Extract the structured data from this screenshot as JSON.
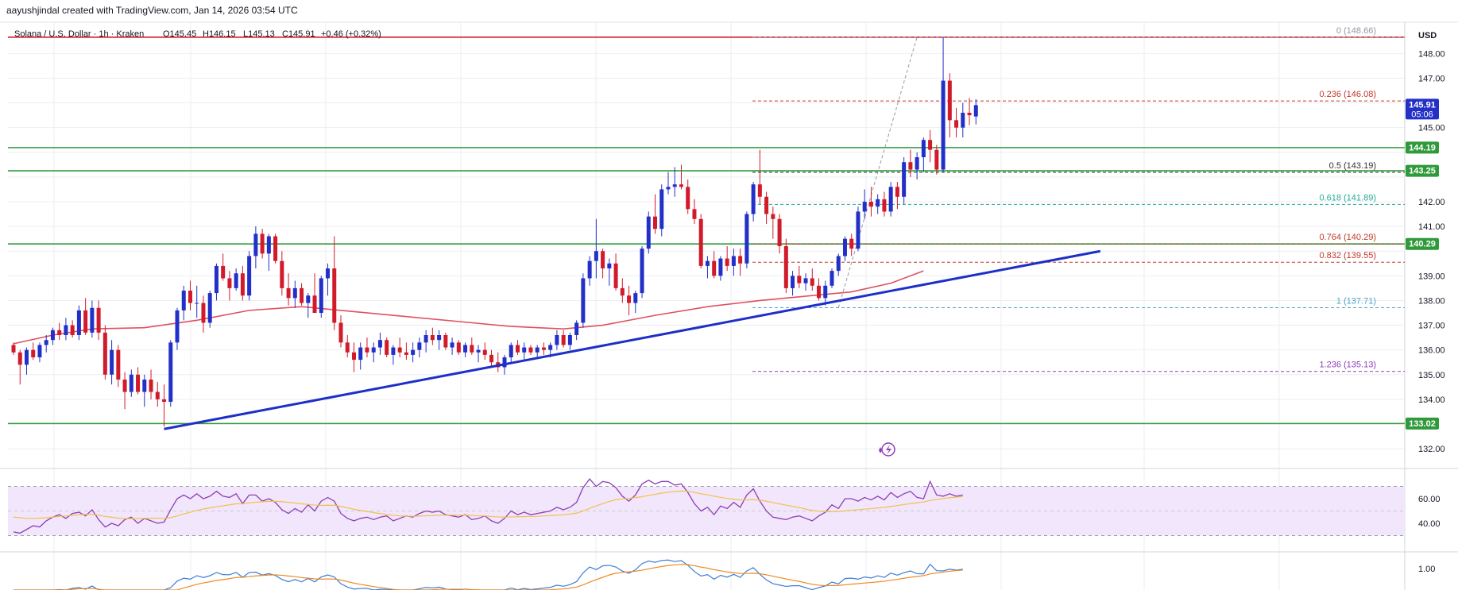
{
  "credit": "aayushjindal created with TradingView.com, Jan 14, 2026 03:54 UTC",
  "symbol_line": {
    "symbol": "Solana / U.S. Dollar · 1h · Kraken",
    "open": "O145.45",
    "high": "H146.15",
    "low": "L145.13",
    "close": "C145.91",
    "change": "+0.46 (+0.32%)"
  },
  "currency": "USD",
  "colors": {
    "up": "#2230c8",
    "down": "#d11a2a",
    "trendline": "#1e2fc7",
    "support": "#2e9a3a",
    "resistance": "#d11a2a",
    "ma": "#e0505f",
    "rsi": "#8e3fb6",
    "rsi_ma": "#f2c14e",
    "rsi_band": "#f1e6fb",
    "macd": "#3b7dd8",
    "signal": "#ef8a22"
  },
  "chart_data": {
    "type": "candlestick",
    "y_axis": {
      "ticks": [
        132.0,
        133.0,
        134.0,
        135.0,
        136.0,
        137.0,
        138.0,
        139.0,
        140.0,
        141.0,
        142.0,
        143.0,
        144.0,
        145.0,
        146.0,
        147.0,
        148.0
      ],
      "tick_labels": [
        "132.00",
        "",
        "134.00",
        "135.00",
        "136.00",
        "137.00",
        "138.00",
        "139.00",
        "",
        "141.00",
        "142.00",
        "",
        "",
        "145.00",
        "",
        "147.00",
        "148.00"
      ],
      "ylim": [
        131.2,
        149.2
      ]
    },
    "price_tags": [
      {
        "label": "145.91",
        "sub": "05:06",
        "value": 145.91,
        "color": "#2230c8"
      },
      {
        "label": "144.19",
        "value": 144.19,
        "color": "#2e9a3a"
      },
      {
        "label": "143.25",
        "value": 143.25,
        "color": "#2e9a3a"
      },
      {
        "label": "140.29",
        "value": 140.29,
        "color": "#2e9a3a"
      },
      {
        "label": "133.02",
        "value": 133.02,
        "color": "#2e9a3a"
      }
    ],
    "horizontal_lines": [
      {
        "value": 148.66,
        "color": "#d11a2a"
      },
      {
        "value": 144.19,
        "color": "#2e9a3a"
      },
      {
        "value": 143.25,
        "color": "#2e9a3a"
      },
      {
        "value": 140.29,
        "color": "#2e9a3a"
      },
      {
        "value": 133.02,
        "color": "#2e9a3a"
      }
    ],
    "fib_levels": [
      {
        "label": "0 (148.66)",
        "value": 148.66,
        "color": "#9598a1"
      },
      {
        "label": "0.236 (146.08)",
        "value": 146.08,
        "color": "#c0392b"
      },
      {
        "label": "0.5 (143.19)",
        "value": 143.19,
        "color": "#333333"
      },
      {
        "label": "0.618 (141.89)",
        "value": 141.89,
        "color": "#22ab94"
      },
      {
        "label": "0.764 (140.29)",
        "value": 140.29,
        "color": "#c0392b"
      },
      {
        "label": "0.832 (139.55)",
        "value": 139.55,
        "color": "#c0392b"
      },
      {
        "label": "1 (137.71)",
        "value": 137.71,
        "color": "#4aa3c8"
      },
      {
        "label": "1.236 (135.13)",
        "value": 135.13,
        "color": "#8e3fb6"
      }
    ],
    "candles": [
      [
        136.2,
        136.3,
        135.8,
        135.9
      ],
      [
        135.9,
        136.0,
        134.6,
        135.4
      ],
      [
        135.4,
        136.1,
        135.0,
        136.0
      ],
      [
        136.0,
        136.3,
        135.6,
        135.7
      ],
      [
        135.7,
        136.3,
        135.5,
        136.2
      ],
      [
        136.2,
        136.6,
        135.9,
        136.4
      ],
      [
        136.4,
        136.9,
        136.2,
        136.8
      ],
      [
        136.8,
        137.1,
        136.4,
        136.6
      ],
      [
        136.6,
        137.3,
        136.4,
        137.0
      ],
      [
        137.0,
        137.2,
        136.5,
        136.6
      ],
      [
        136.6,
        137.8,
        136.4,
        137.6
      ],
      [
        137.6,
        138.1,
        136.6,
        136.7
      ],
      [
        136.7,
        138.0,
        136.5,
        137.7
      ],
      [
        137.7,
        138.0,
        136.4,
        136.7
      ],
      [
        136.7,
        137.0,
        134.8,
        135.0
      ],
      [
        135.0,
        136.4,
        134.6,
        136.0
      ],
      [
        136.0,
        136.2,
        134.5,
        134.8
      ],
      [
        134.8,
        135.1,
        133.6,
        134.3
      ],
      [
        134.3,
        135.2,
        134.1,
        135.0
      ],
      [
        135.0,
        135.3,
        134.2,
        134.3
      ],
      [
        134.3,
        135.0,
        133.7,
        134.8
      ],
      [
        134.8,
        135.2,
        134.0,
        134.3
      ],
      [
        134.3,
        134.7,
        133.7,
        134.0
      ],
      [
        134.0,
        134.6,
        132.9,
        133.9
      ],
      [
        133.9,
        136.4,
        133.7,
        136.3
      ],
      [
        136.3,
        137.7,
        136.0,
        137.6
      ],
      [
        137.6,
        138.6,
        137.2,
        138.4
      ],
      [
        138.4,
        138.8,
        137.6,
        137.9
      ],
      [
        137.9,
        138.6,
        137.3,
        137.9
      ],
      [
        137.9,
        138.2,
        136.7,
        137.1
      ],
      [
        137.1,
        138.4,
        136.9,
        138.3
      ],
      [
        138.3,
        139.5,
        138.0,
        139.4
      ],
      [
        139.4,
        139.9,
        138.8,
        138.9
      ],
      [
        138.9,
        139.2,
        138.0,
        138.5
      ],
      [
        138.5,
        139.3,
        138.4,
        139.1
      ],
      [
        139.1,
        139.4,
        138.0,
        138.2
      ],
      [
        138.2,
        140.0,
        138.0,
        139.8
      ],
      [
        139.8,
        141.0,
        139.3,
        140.7
      ],
      [
        140.7,
        140.9,
        139.7,
        139.9
      ],
      [
        139.9,
        140.7,
        139.2,
        140.6
      ],
      [
        140.6,
        140.7,
        139.5,
        139.6
      ],
      [
        139.6,
        140.0,
        138.2,
        138.5
      ],
      [
        138.5,
        139.1,
        137.8,
        138.1
      ],
      [
        138.1,
        138.8,
        137.7,
        138.5
      ],
      [
        138.5,
        138.7,
        137.8,
        137.9
      ],
      [
        137.9,
        138.3,
        137.3,
        138.2
      ],
      [
        138.2,
        139.1,
        137.6,
        137.5
      ],
      [
        137.5,
        139.0,
        137.3,
        138.9
      ],
      [
        138.9,
        139.5,
        138.2,
        139.3
      ],
      [
        139.3,
        140.6,
        136.8,
        137.1
      ],
      [
        137.1,
        137.4,
        136.1,
        136.3
      ],
      [
        136.3,
        136.6,
        135.7,
        135.9
      ],
      [
        135.9,
        136.3,
        135.1,
        135.6
      ],
      [
        135.6,
        136.3,
        135.2,
        136.1
      ],
      [
        136.1,
        136.5,
        135.7,
        135.9
      ],
      [
        135.9,
        136.3,
        135.5,
        136.1
      ],
      [
        136.1,
        136.7,
        135.8,
        136.4
      ],
      [
        136.4,
        136.5,
        135.7,
        135.8
      ],
      [
        135.8,
        136.2,
        135.4,
        136.1
      ],
      [
        136.1,
        136.5,
        135.7,
        135.9
      ],
      [
        135.9,
        136.3,
        135.6,
        135.8
      ],
      [
        135.8,
        136.3,
        135.5,
        136.0
      ],
      [
        136.0,
        136.5,
        135.7,
        136.3
      ],
      [
        136.3,
        136.8,
        135.9,
        136.6
      ],
      [
        136.6,
        136.9,
        136.2,
        136.4
      ],
      [
        136.4,
        136.8,
        136.0,
        136.6
      ],
      [
        136.6,
        136.7,
        136.0,
        136.1
      ],
      [
        136.1,
        136.5,
        135.8,
        136.3
      ],
      [
        136.3,
        136.4,
        135.8,
        135.9
      ],
      [
        135.9,
        136.3,
        135.7,
        136.2
      ],
      [
        136.2,
        136.5,
        135.8,
        135.9
      ],
      [
        135.9,
        136.2,
        135.5,
        136.0
      ],
      [
        136.0,
        136.3,
        135.6,
        135.8
      ],
      [
        135.8,
        136.0,
        135.3,
        135.5
      ],
      [
        135.5,
        135.9,
        135.1,
        135.3
      ],
      [
        135.3,
        135.8,
        135.0,
        135.7
      ],
      [
        135.7,
        136.3,
        135.5,
        136.2
      ],
      [
        136.2,
        136.4,
        135.8,
        135.9
      ],
      [
        135.9,
        136.3,
        135.6,
        136.1
      ],
      [
        136.1,
        136.2,
        135.8,
        135.9
      ],
      [
        135.9,
        136.2,
        135.7,
        136.1
      ],
      [
        136.1,
        136.3,
        135.8,
        136.0
      ],
      [
        136.0,
        136.3,
        135.7,
        136.2
      ],
      [
        136.2,
        136.8,
        136.0,
        136.6
      ],
      [
        136.6,
        136.8,
        136.1,
        136.2
      ],
      [
        136.2,
        136.7,
        136.0,
        136.6
      ],
      [
        136.6,
        137.2,
        136.4,
        137.1
      ],
      [
        137.1,
        139.1,
        136.9,
        138.9
      ],
      [
        138.9,
        139.8,
        138.6,
        139.6
      ],
      [
        139.6,
        141.3,
        138.9,
        140.0
      ],
      [
        140.0,
        140.1,
        138.9,
        139.3
      ],
      [
        139.3,
        139.7,
        138.6,
        139.5
      ],
      [
        139.5,
        139.9,
        138.4,
        138.5
      ],
      [
        138.5,
        138.9,
        137.9,
        138.2
      ],
      [
        138.2,
        138.6,
        137.4,
        137.9
      ],
      [
        137.9,
        138.4,
        137.5,
        138.3
      ],
      [
        138.3,
        140.2,
        138.1,
        140.1
      ],
      [
        140.1,
        141.6,
        139.9,
        141.4
      ],
      [
        141.4,
        142.3,
        140.7,
        140.9
      ],
      [
        140.9,
        142.7,
        140.6,
        142.5
      ],
      [
        142.5,
        143.2,
        142.3,
        142.6
      ],
      [
        142.6,
        143.4,
        142.2,
        142.7
      ],
      [
        142.7,
        143.5,
        142.5,
        142.6
      ],
      [
        142.6,
        142.9,
        141.5,
        141.7
      ],
      [
        141.7,
        142.1,
        141.1,
        141.3
      ],
      [
        141.3,
        141.5,
        139.3,
        139.4
      ],
      [
        139.4,
        139.8,
        138.9,
        139.6
      ],
      [
        139.6,
        140.0,
        138.9,
        139.0
      ],
      [
        139.0,
        139.8,
        138.8,
        139.7
      ],
      [
        139.7,
        140.2,
        139.2,
        139.4
      ],
      [
        139.4,
        140.1,
        139.0,
        139.8
      ],
      [
        139.8,
        140.1,
        139.0,
        139.5
      ],
      [
        139.5,
        141.6,
        139.3,
        141.5
      ],
      [
        141.5,
        142.8,
        141.2,
        142.7
      ],
      [
        142.7,
        144.1,
        141.9,
        142.2
      ],
      [
        142.2,
        142.4,
        141.1,
        141.5
      ],
      [
        141.5,
        141.8,
        140.5,
        141.3
      ],
      [
        141.3,
        141.5,
        139.9,
        140.2
      ],
      [
        140.2,
        140.5,
        138.3,
        138.5
      ],
      [
        138.5,
        139.2,
        138.2,
        139.0
      ],
      [
        139.0,
        139.4,
        138.5,
        138.7
      ],
      [
        138.7,
        139.1,
        138.4,
        138.9
      ],
      [
        138.9,
        139.3,
        138.4,
        138.6
      ],
      [
        138.6,
        138.9,
        138.0,
        138.1
      ],
      [
        138.1,
        138.8,
        137.8,
        138.6
      ],
      [
        138.6,
        139.3,
        138.5,
        139.2
      ],
      [
        139.2,
        139.9,
        139.0,
        139.8
      ],
      [
        139.8,
        140.6,
        139.6,
        140.5
      ],
      [
        140.5,
        140.7,
        139.8,
        140.1
      ],
      [
        140.1,
        141.8,
        140.0,
        141.6
      ],
      [
        141.6,
        142.5,
        141.3,
        142.0
      ],
      [
        142.0,
        142.6,
        141.4,
        141.8
      ],
      [
        141.8,
        142.3,
        141.5,
        142.1
      ],
      [
        142.1,
        142.4,
        141.4,
        141.6
      ],
      [
        141.6,
        142.8,
        141.4,
        142.6
      ],
      [
        142.6,
        142.8,
        141.7,
        142.2
      ],
      [
        142.2,
        143.8,
        141.9,
        143.6
      ],
      [
        143.6,
        144.1,
        143.0,
        143.3
      ],
      [
        143.3,
        144.0,
        142.9,
        143.8
      ],
      [
        143.8,
        144.6,
        143.2,
        144.5
      ],
      [
        144.5,
        144.9,
        143.6,
        144.1
      ],
      [
        144.1,
        144.3,
        143.1,
        143.3
      ],
      [
        143.3,
        148.66,
        143.2,
        146.9
      ],
      [
        146.9,
        147.2,
        144.6,
        145.3
      ],
      [
        145.3,
        145.8,
        144.6,
        145.0
      ],
      [
        145.0,
        146.0,
        144.6,
        145.6
      ],
      [
        145.6,
        146.2,
        145.1,
        145.5
      ],
      [
        145.45,
        146.15,
        145.13,
        145.91
      ]
    ],
    "moving_average": [
      [
        0,
        136.25
      ],
      [
        6,
        136.6
      ],
      [
        12,
        136.85
      ],
      [
        20,
        136.9
      ],
      [
        28,
        137.2
      ],
      [
        36,
        137.6
      ],
      [
        44,
        137.75
      ],
      [
        52,
        137.55
      ],
      [
        60,
        137.35
      ],
      [
        68,
        137.15
      ],
      [
        76,
        136.95
      ],
      [
        84,
        136.85
      ],
      [
        90,
        137.0
      ],
      [
        98,
        137.4
      ],
      [
        106,
        137.75
      ],
      [
        114,
        138.0
      ],
      [
        120,
        138.15
      ],
      [
        128,
        138.35
      ],
      [
        134,
        138.7
      ],
      [
        139,
        139.2
      ]
    ],
    "trendline": {
      "from": [
        23,
        132.8
      ],
      "to": [
        166,
        140.0
      ]
    },
    "fib_swing": {
      "from": [
        126,
        137.71
      ],
      "to": [
        138,
        148.66
      ]
    },
    "rsi": {
      "band": [
        30,
        70
      ],
      "mid": 50,
      "ticks": [
        40,
        60
      ],
      "values": [
        33,
        32,
        35,
        38,
        37,
        42,
        45,
        47,
        44,
        48,
        49,
        46,
        51,
        43,
        37,
        40,
        38,
        43,
        45,
        40,
        44,
        42,
        40,
        41,
        51,
        60,
        63,
        60,
        64,
        60,
        62,
        66,
        62,
        61,
        64,
        56,
        63,
        63,
        58,
        60,
        57,
        51,
        48,
        52,
        49,
        55,
        50,
        58,
        61,
        58,
        48,
        44,
        42,
        44,
        45,
        43,
        45,
        46,
        42,
        44,
        46,
        45,
        48,
        50,
        49,
        50,
        47,
        46,
        45,
        47,
        43,
        44,
        46,
        42,
        40,
        44,
        50,
        47,
        49,
        47,
        48,
        49,
        50,
        53,
        51,
        53,
        57,
        69,
        76,
        70,
        74,
        73,
        69,
        62,
        58,
        63,
        72,
        75,
        72,
        74,
        74,
        71,
        72,
        65,
        56,
        50,
        53,
        47,
        54,
        52,
        57,
        53,
        63,
        68,
        58,
        50,
        45,
        44,
        43,
        45,
        46,
        44,
        42,
        46,
        49,
        55,
        52,
        60,
        60,
        58,
        61,
        59,
        62,
        59,
        65,
        61,
        64,
        66,
        61,
        60,
        74,
        63,
        62,
        64,
        62,
        63
      ],
      "ma": [
        45,
        44.5,
        44,
        44,
        44.2,
        44.5,
        45,
        45.6,
        46,
        46.5,
        47,
        47.2,
        47.3,
        46.6,
        45.6,
        44.9,
        44.2,
        43.8,
        43.8,
        43.8,
        44,
        44.2,
        44.1,
        44,
        44.6,
        46,
        47.6,
        49,
        50.5,
        51.6,
        52.5,
        53.5,
        54.2,
        55,
        55.8,
        56,
        56.6,
        57.1,
        57.5,
        57.8,
        57.9,
        57.6,
        57,
        56.5,
        55.8,
        55.3,
        54.8,
        54.5,
        54.7,
        54.6,
        53.8,
        52.6,
        51.4,
        50.4,
        49.6,
        48.7,
        47.9,
        47.2,
        46.5,
        46,
        45.8,
        45.7,
        45.9,
        46.1,
        46.2,
        46.5,
        46.6,
        46.6,
        46.6,
        46.6,
        46.3,
        46.1,
        46,
        45.6,
        45.2,
        45,
        45.2,
        45.3,
        45.5,
        45.6,
        45.7,
        46,
        46.2,
        46.6,
        46.9,
        47.5,
        48.3,
        50,
        52.2,
        54.1,
        56,
        57.8,
        59.2,
        59.8,
        60.3,
        60.8,
        61.6,
        62.6,
        63.6,
        64.5,
        65.2,
        65.8,
        66.2,
        66,
        65.1,
        64,
        63.2,
        62,
        61.1,
        60.2,
        59.6,
        59,
        59,
        59.2,
        58.8,
        57.9,
        56.9,
        55.8,
        54.7,
        53.7,
        52.8,
        51.6,
        50.5,
        49.8,
        49.4,
        49.5,
        49.6,
        50.1,
        50.6,
        51,
        51.5,
        51.9,
        52.4,
        52.9,
        53.7,
        54.4,
        55.2,
        56,
        56.7,
        57.3,
        58.6,
        59.4,
        60.1,
        60.8,
        61.3,
        61.7
      ]
    },
    "macd": {
      "ticks": [
        1.0
      ],
      "tick_labels": [
        "1.00"
      ]
    }
  },
  "icons": {
    "lightning": "lightning-icon"
  }
}
